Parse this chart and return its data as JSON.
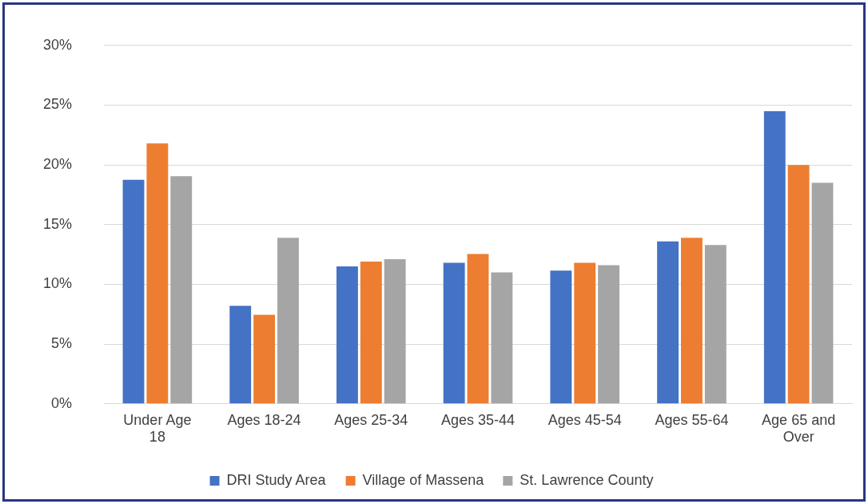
{
  "chart_data": {
    "type": "bar",
    "categories": [
      "Under Age 18",
      "Ages 18-24",
      "Ages 25-34",
      "Ages 35-44",
      "Ages 45-54",
      "Ages 55-64",
      "Age 65 and Over"
    ],
    "series": [
      {
        "name": "DRI Study Area",
        "color": "#4472c4",
        "values": [
          18.75,
          8.2,
          11.5,
          11.8,
          11.15,
          13.6,
          24.5
        ]
      },
      {
        "name": "Village of Massena",
        "color": "#ed7d31",
        "values": [
          21.8,
          7.45,
          11.9,
          12.55,
          11.8,
          13.9,
          20.0
        ]
      },
      {
        "name": "St. Lawrence County",
        "color": "#a5a5a5",
        "values": [
          19.05,
          13.9,
          12.1,
          11.0,
          11.6,
          13.3,
          18.5
        ]
      }
    ],
    "ylim": [
      0,
      30
    ],
    "yticks": [
      {
        "value": 0,
        "label": "0%"
      },
      {
        "value": 5,
        "label": "5%"
      },
      {
        "value": 10,
        "label": "10%"
      },
      {
        "value": 15,
        "label": "15%"
      },
      {
        "value": 20,
        "label": "20%"
      },
      {
        "value": 25,
        "label": "25%"
      },
      {
        "value": 30,
        "label": "30%"
      }
    ],
    "grid": "y",
    "legend": "bottom"
  }
}
